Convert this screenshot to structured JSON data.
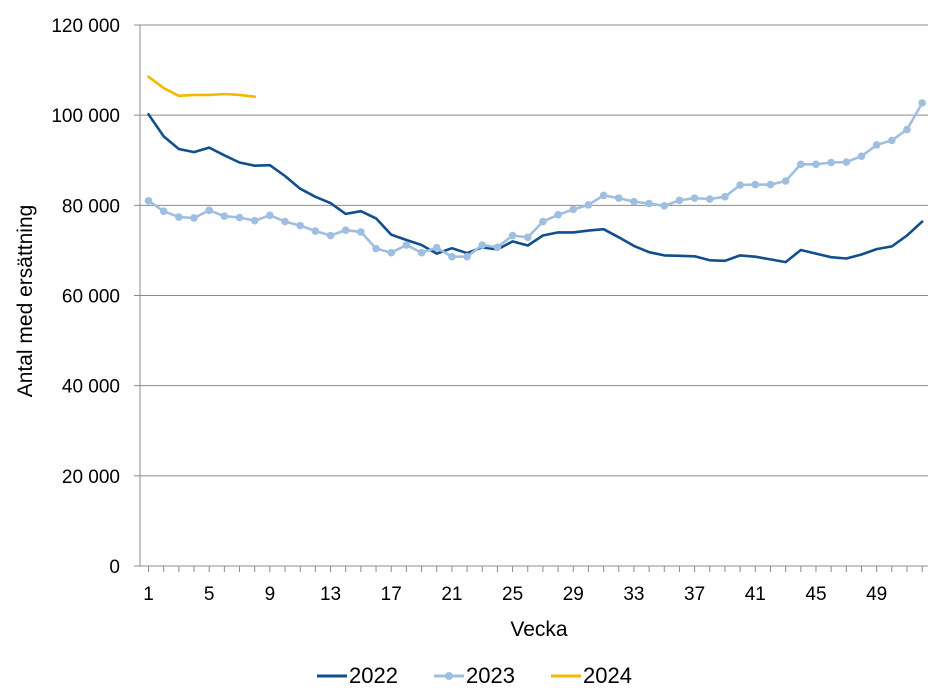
{
  "chart_data": {
    "type": "line",
    "title": "",
    "xlabel": "Vecka",
    "ylabel": "Antal med ersättning",
    "ylim": [
      0,
      120000
    ],
    "xlim": [
      1,
      52
    ],
    "x_tick_labels": [
      "1",
      "5",
      "9",
      "13",
      "17",
      "21",
      "25",
      "29",
      "33",
      "37",
      "41",
      "45",
      "49"
    ],
    "y_tick_labels": [
      "0",
      "20 000",
      "40 000",
      "60 000",
      "80 000",
      "100 000",
      "120 000"
    ],
    "grid": "horizontal",
    "legend_position": "bottom",
    "series": [
      {
        "name": "2022",
        "color": "#114f8c",
        "markers": false,
        "x": [
          1,
          2,
          3,
          4,
          5,
          6,
          7,
          8,
          9,
          10,
          11,
          12,
          13,
          14,
          15,
          16,
          17,
          18,
          19,
          20,
          21,
          22,
          23,
          24,
          25,
          26,
          27,
          28,
          29,
          30,
          31,
          32,
          33,
          34,
          35,
          36,
          37,
          38,
          39,
          40,
          41,
          42,
          43,
          44,
          45,
          46,
          47,
          48,
          49,
          50,
          51,
          52
        ],
        "values": [
          100200,
          95300,
          92500,
          91800,
          92800,
          91100,
          89500,
          88800,
          88900,
          86500,
          83700,
          81900,
          80500,
          78100,
          78700,
          77100,
          73500,
          72300,
          71200,
          69300,
          70500,
          69400,
          70700,
          70200,
          72000,
          71100,
          73300,
          74000,
          74000,
          74400,
          74700,
          72900,
          71000,
          69600,
          68900,
          68800,
          68700,
          67800,
          67700,
          68900,
          68600,
          68000,
          67400,
          70100,
          69300,
          68500,
          68200,
          69100,
          70300,
          70900,
          73300,
          76400
        ]
      },
      {
        "name": "2023",
        "color": "#9fbfe0",
        "markers": true,
        "x": [
          1,
          2,
          3,
          4,
          5,
          6,
          7,
          8,
          9,
          10,
          11,
          12,
          13,
          14,
          15,
          16,
          17,
          18,
          19,
          20,
          21,
          22,
          23,
          24,
          25,
          26,
          27,
          28,
          29,
          30,
          31,
          32,
          33,
          34,
          35,
          36,
          37,
          38,
          39,
          40,
          41,
          42,
          43,
          44,
          45,
          46,
          47,
          48,
          49,
          50,
          51,
          52
        ],
        "values": [
          81000,
          78700,
          77400,
          77200,
          78900,
          77600,
          77300,
          76600,
          77800,
          76400,
          75500,
          74300,
          73300,
          74500,
          74100,
          70400,
          69500,
          71200,
          69500,
          70600,
          68600,
          68600,
          71200,
          70700,
          73300,
          72900,
          76400,
          77900,
          79100,
          80100,
          82200,
          81600,
          80800,
          80400,
          79900,
          81100,
          81600,
          81400,
          81900,
          84500,
          84600,
          84600,
          85400,
          89100,
          89100,
          89500,
          89600,
          90900,
          93400,
          94400,
          96800,
          102700
        ]
      },
      {
        "name": "2024",
        "color": "#f5b800",
        "markers": false,
        "x": [
          1,
          2,
          3,
          4,
          5,
          6,
          7,
          8
        ],
        "values": [
          108500,
          106000,
          104300,
          104500,
          104500,
          104700,
          104500,
          104100
        ]
      }
    ]
  }
}
